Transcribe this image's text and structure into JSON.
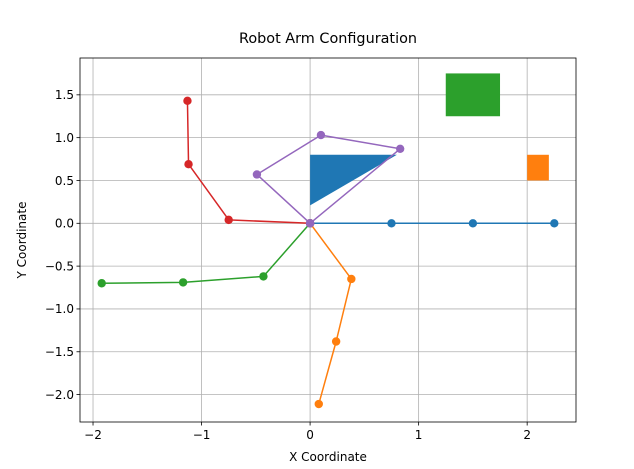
{
  "chart_data": {
    "type": "line",
    "title": "Robot Arm Configuration",
    "xlabel": "X Coordinate",
    "ylabel": "Y Coordinate",
    "xlim": [
      -2.12,
      2.45
    ],
    "ylim": [
      -2.32,
      1.93
    ],
    "grid": true,
    "xticks": [
      {
        "value": -2,
        "label": "−2"
      },
      {
        "value": -1,
        "label": "−1"
      },
      {
        "value": 0,
        "label": "0"
      },
      {
        "value": 1,
        "label": "1"
      },
      {
        "value": 2,
        "label": "2"
      }
    ],
    "yticks": [
      {
        "value": -2.0,
        "label": "−2.0"
      },
      {
        "value": -1.5,
        "label": "−1.5"
      },
      {
        "value": -1.0,
        "label": "−1.0"
      },
      {
        "value": -0.5,
        "label": "−0.5"
      },
      {
        "value": 0.0,
        "label": "0.0"
      },
      {
        "value": 0.5,
        "label": "0.5"
      },
      {
        "value": 1.0,
        "label": "1.0"
      },
      {
        "value": 1.5,
        "label": "1.5"
      }
    ],
    "series": [
      {
        "color": "#1f77b4",
        "x": [
          0,
          0.75,
          1.5,
          2.25
        ],
        "y": [
          0,
          0,
          0,
          0
        ]
      },
      {
        "color": "#ff7f0e",
        "x": [
          0,
          0.38,
          0.24,
          0.08
        ],
        "y": [
          0,
          -0.65,
          -1.38,
          -2.11
        ]
      },
      {
        "color": "#2ca02c",
        "x": [
          0,
          -0.43,
          -1.17,
          -1.92
        ],
        "y": [
          0,
          -0.62,
          -0.69,
          -0.7
        ]
      },
      {
        "color": "#d62728",
        "x": [
          0,
          -0.75,
          -1.12,
          -1.13
        ],
        "y": [
          0,
          0.04,
          0.69,
          1.43
        ]
      },
      {
        "color": "#9467bd",
        "x": [
          0,
          -0.49,
          0.1,
          0.83,
          0
        ],
        "y": [
          0,
          0.57,
          1.03,
          0.87,
          0
        ]
      }
    ],
    "obstacles": [
      {
        "shape": "polygon",
        "color": "#1f77b4",
        "x": [
          0.0,
          0.8,
          0.0
        ],
        "y": [
          0.8,
          0.8,
          0.21
        ]
      },
      {
        "shape": "rect",
        "color": "#2ca02c",
        "x": [
          1.25,
          1.75
        ],
        "y": [
          1.25,
          1.75
        ]
      },
      {
        "shape": "rect",
        "color": "#ff7f0e",
        "x": [
          2.0,
          2.2
        ],
        "y": [
          0.5,
          0.8
        ]
      }
    ]
  }
}
